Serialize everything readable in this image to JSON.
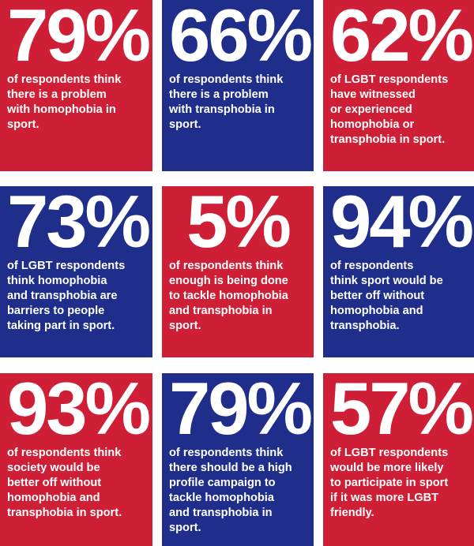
{
  "colors": {
    "red": "#cf1f36",
    "blue": "#1f2e8b",
    "text": "#ffffff"
  },
  "stats": [
    {
      "value": "79%",
      "color": "red",
      "lines": [
        "of respondents think",
        "there is a problem",
        "with homophobia in",
        "sport."
      ]
    },
    {
      "value": "66%",
      "color": "blue",
      "lines": [
        "of respondents think",
        "there is a problem",
        "with transphobia in",
        "sport."
      ]
    },
    {
      "value": "62%",
      "color": "red",
      "lines": [
        "of LGBT respondents",
        "have witnessed",
        "or experienced",
        "homophobia or",
        "transphobia in sport."
      ]
    },
    {
      "value": "73%",
      "color": "blue",
      "lines": [
        "of LGBT respondents",
        "think homophobia",
        "and transphobia are",
        "barriers to people",
        "taking part in sport."
      ]
    },
    {
      "value": "5%",
      "color": "red",
      "lines": [
        "of respondents think",
        "enough is being done",
        "to tackle homophobia",
        "and transphobia in",
        "sport."
      ]
    },
    {
      "value": "94%",
      "color": "blue",
      "lines": [
        "of respondents",
        "think sport would be",
        "better off without",
        "homophobia and",
        "transphobia."
      ]
    },
    {
      "value": "93%",
      "color": "red",
      "lines": [
        "of respondents think",
        "society would be",
        "better off without",
        "homophobia and",
        "transphobia in sport."
      ]
    },
    {
      "value": "79%",
      "color": "blue",
      "lines": [
        "of respondents think",
        "there should be a high",
        "profile campaign to",
        "tackle homophobia",
        "and transphobia in",
        "sport."
      ]
    },
    {
      "value": "57%",
      "color": "red",
      "lines": [
        "of LGBT respondents",
        "would be more likely",
        "to participate in sport",
        "if it was more LGBT",
        "friendly."
      ]
    }
  ]
}
